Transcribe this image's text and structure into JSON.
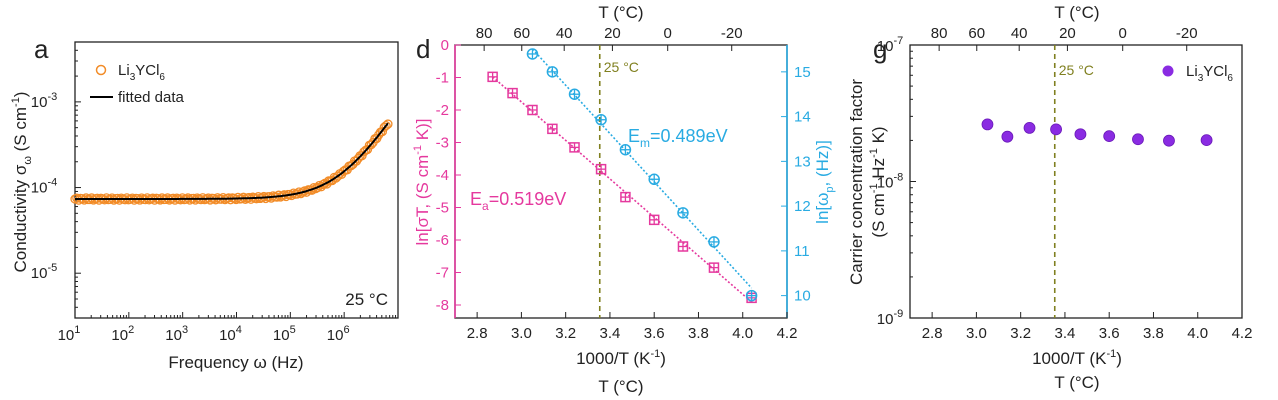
{
  "chart_data": [
    {
      "panel_label": "a",
      "type": "line",
      "x_scale": "log",
      "y_scale": "log",
      "xlabel": "Frequency ω (Hz)",
      "ylabel_main": "Conductivity σ",
      "ylabel_sub": "ω",
      "ylabel_unit_pre": " (S cm",
      "ylabel_unit_sup": "-1",
      "ylabel_unit_post": ")",
      "xlim": [
        10,
        10000000
      ],
      "ylim": [
        3e-06,
        0.005
      ],
      "x_tick_labels": [
        {
          "base": "10",
          "exp": "1"
        },
        {
          "base": "10",
          "exp": "2"
        },
        {
          "base": "10",
          "exp": "3"
        },
        {
          "base": "10",
          "exp": "4"
        },
        {
          "base": "10",
          "exp": "5"
        },
        {
          "base": "10",
          "exp": "6"
        }
      ],
      "y_tick_labels": [
        {
          "base": "10",
          "exp": "-5"
        },
        {
          "base": "10",
          "exp": "-4"
        },
        {
          "base": "10",
          "exp": "-3"
        }
      ],
      "annotation": "25 °C",
      "legend": [
        {
          "label_main": "Li",
          "label_sub1": "3",
          "label_mid": "YCl",
          "label_sub2": "6",
          "marker": "open-circle",
          "color": "#f28c28"
        },
        {
          "label": "fitted data",
          "marker": "line",
          "color": "#000000"
        }
      ],
      "series": [
        {
          "name": "Li3YCl6",
          "kind": "measured",
          "color": "#f28c28",
          "model": {
            "sigma_dc": 7.35e-05,
            "crossover_freq": 900000,
            "exponent": 0.96
          },
          "x_range": [
            10,
            6500000
          ]
        },
        {
          "name": "fitted data",
          "kind": "fit",
          "color": "#000000",
          "model": {
            "sigma_dc": 7.35e-05,
            "crossover_freq": 900000,
            "exponent": 0.96
          },
          "x_range": [
            10,
            6500000
          ]
        }
      ]
    },
    {
      "panel_label": "d",
      "type": "scatter",
      "x_label_main": "1000/T (K",
      "x_label_sup": "-1",
      "x_label_post": ")",
      "top_axis_label": "T (°C)",
      "bottom_extra_label": "T (°C)",
      "xlim": [
        2.7,
        4.2
      ],
      "x_ticks": [
        "2.8",
        "3.0",
        "3.2",
        "3.4",
        "3.6",
        "3.8",
        "4.0",
        "4.2"
      ],
      "top_ticks": [
        {
          "celsius": 80,
          "label": "80"
        },
        {
          "celsius": 60,
          "label": "60"
        },
        {
          "celsius": 40,
          "label": "40"
        },
        {
          "celsius": 20,
          "label": "20"
        },
        {
          "celsius": 0,
          "label": "0"
        },
        {
          "celsius": -20,
          "label": "-20"
        }
      ],
      "vline": {
        "x": 3.354,
        "label": "25 °C",
        "color": "#808020"
      },
      "left_axis": {
        "label": "ln[σT, (S cm-1 K)]",
        "label_pre": "ln[σT, (S cm",
        "label_sup": "-1",
        "label_post": " K)]",
        "color": "#e5399e",
        "ylim": [
          -8.4,
          0
        ],
        "ticks": [
          "0",
          "-1",
          "-2",
          "-3",
          "-4",
          "-5",
          "-6",
          "-7",
          "-8"
        ]
      },
      "right_axis": {
        "label": "ln[ωp, (Hz)]",
        "label_pre": "ln[ω",
        "label_sub": "p",
        "label_post": ", (Hz)]",
        "color": "#29abe2",
        "ylim": [
          9.5,
          15.6
        ],
        "ticks": [
          "10",
          "11",
          "12",
          "13",
          "14",
          "15"
        ]
      },
      "annotations": [
        {
          "text_main": "E",
          "text_sub": "a",
          "text_post": "=0.519eV",
          "color": "#e5399e"
        },
        {
          "text_main": "E",
          "text_sub": "m",
          "text_post": "=0.489eV",
          "color": "#29abe2"
        }
      ],
      "series": [
        {
          "name": "ln[σT]",
          "axis": "left",
          "marker": "square-cross",
          "color": "#e5399e",
          "x": [
            2.87,
            2.96,
            3.05,
            3.14,
            3.24,
            3.36,
            3.47,
            3.6,
            3.73,
            3.87,
            4.04
          ],
          "y": [
            -0.98,
            -1.48,
            -2.0,
            -2.58,
            -3.15,
            -3.82,
            -4.68,
            -5.38,
            -6.2,
            -6.85,
            -7.78
          ]
        },
        {
          "name": "ln[ωp]",
          "axis": "right",
          "marker": "circle-cross",
          "color": "#29abe2",
          "x": [
            3.05,
            3.14,
            3.24,
            3.36,
            3.47,
            3.6,
            3.73,
            3.87,
            4.04
          ],
          "y": [
            15.4,
            15.0,
            14.5,
            13.93,
            13.26,
            12.6,
            11.85,
            11.2,
            10.0
          ]
        }
      ]
    },
    {
      "panel_label": "g",
      "type": "scatter",
      "y_scale": "log",
      "x_label_main": "1000/T (K",
      "x_label_sup": "-1",
      "x_label_post": ")",
      "top_axis_label": "T (°C)",
      "bottom_extra_label": "T (°C)",
      "ylabel_line1": "Carrier concentration factor",
      "ylabel_line2_pre": "(S cm",
      "ylabel_line2_sup1": "-1",
      "ylabel_line2_mid": " Hz",
      "ylabel_line2_sup2": "-1",
      "ylabel_line2_post": " K)",
      "xlim": [
        2.7,
        4.2
      ],
      "ylim": [
        1e-09,
        1e-07
      ],
      "x_ticks": [
        "2.8",
        "3.0",
        "3.2",
        "3.4",
        "3.6",
        "3.8",
        "4.0",
        "4.2"
      ],
      "y_tick_labels": [
        {
          "base": "10",
          "exp": "-9"
        },
        {
          "base": "10",
          "exp": "-8"
        },
        {
          "base": "10",
          "exp": "-7"
        }
      ],
      "top_ticks": [
        {
          "celsius": 80,
          "label": "80"
        },
        {
          "celsius": 60,
          "label": "60"
        },
        {
          "celsius": 40,
          "label": "40"
        },
        {
          "celsius": 20,
          "label": "20"
        },
        {
          "celsius": 0,
          "label": "0"
        },
        {
          "celsius": -20,
          "label": "-20"
        }
      ],
      "vline": {
        "x": 3.354,
        "label": "25 °C",
        "color": "#808020"
      },
      "legend": [
        {
          "label_main": "Li",
          "label_sub1": "3",
          "label_mid": "YCl",
          "label_sub2": "6",
          "marker": "filled-circle",
          "color": "#8a2be2"
        }
      ],
      "series": [
        {
          "name": "Li3YCl6",
          "marker": "filled-circle",
          "color": "#8a2be2",
          "x": [
            3.05,
            3.14,
            3.24,
            3.36,
            3.47,
            3.6,
            3.73,
            3.87,
            4.04
          ],
          "y": [
            2.62e-08,
            2.13e-08,
            2.47e-08,
            2.41e-08,
            2.22e-08,
            2.15e-08,
            2.04e-08,
            1.99e-08,
            2.01e-08
          ]
        }
      ]
    }
  ]
}
